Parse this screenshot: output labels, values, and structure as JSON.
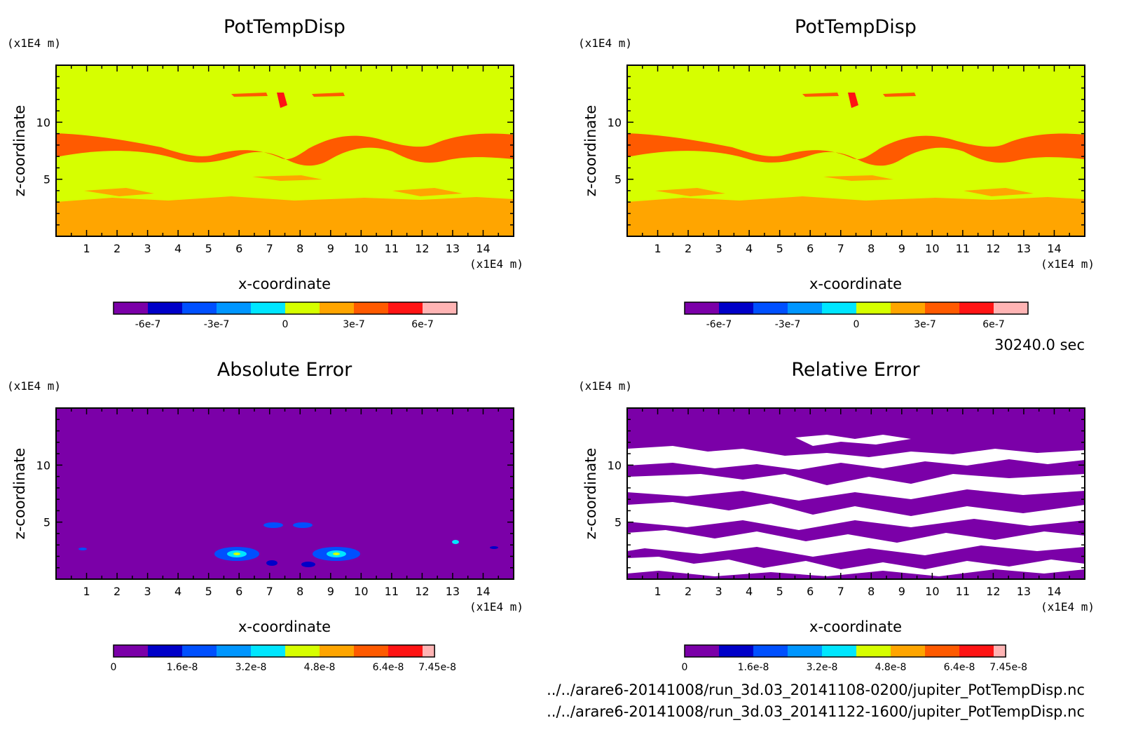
{
  "time_label": "30240.0 sec",
  "file_paths": [
    "../../arare6-20141008/run_3d.03_20141108-0200/jupiter_PotTempDisp.nc",
    "../../arare6-20141008/run_3d.03_20141122-1600/jupiter_PotTempDisp.nc"
  ],
  "colors": {
    "background_purple": "#7b00a8",
    "yellow_green": "#d6ff00",
    "orange": "#ffa500",
    "red_orange": "#ff5a00",
    "white": "#ffffff"
  },
  "chart_data": [
    {
      "type": "heatmap",
      "title": "PotTempDisp",
      "xlabel": "x-coordinate",
      "ylabel": "z-coordinate",
      "x_unit": "(x1E4 m)",
      "y_unit": "(x1E4 m)",
      "x_ticks": [
        "1",
        "2",
        "3",
        "4",
        "5",
        "6",
        "7",
        "8",
        "9",
        "10",
        "11",
        "12",
        "13",
        "14"
      ],
      "y_ticks": [
        "5",
        "10"
      ],
      "xlim": [
        0,
        15
      ],
      "ylim": [
        0,
        15
      ],
      "colorbar": {
        "colors": [
          "#7b00a8",
          "#0000c8",
          "#0050ff",
          "#0096ff",
          "#00e6ff",
          "#d6ff00",
          "#ffa500",
          "#ff5a00",
          "#ff1414",
          "#ffb4b4"
        ],
        "tick_labels": [
          "-6e-7",
          "-3e-7",
          "0",
          "3e-7",
          "6e-7"
        ]
      }
    },
    {
      "type": "heatmap",
      "title": "PotTempDisp",
      "xlabel": "x-coordinate",
      "ylabel": "z-coordinate",
      "x_unit": "(x1E4 m)",
      "y_unit": "(x1E4 m)",
      "x_ticks": [
        "1",
        "2",
        "3",
        "4",
        "5",
        "6",
        "7",
        "8",
        "9",
        "10",
        "11",
        "12",
        "13",
        "14"
      ],
      "y_ticks": [
        "5",
        "10"
      ],
      "xlim": [
        0,
        15
      ],
      "ylim": [
        0,
        15
      ],
      "colorbar": {
        "colors": [
          "#7b00a8",
          "#0000c8",
          "#0050ff",
          "#0096ff",
          "#00e6ff",
          "#d6ff00",
          "#ffa500",
          "#ff5a00",
          "#ff1414",
          "#ffb4b4"
        ],
        "tick_labels": [
          "-6e-7",
          "-3e-7",
          "0",
          "3e-7",
          "6e-7"
        ]
      }
    },
    {
      "type": "heatmap",
      "title": "Absolute Error",
      "xlabel": "x-coordinate",
      "ylabel": "z-coordinate",
      "x_unit": "(x1E4 m)",
      "y_unit": "(x1E4 m)",
      "x_ticks": [
        "1",
        "2",
        "3",
        "4",
        "5",
        "6",
        "7",
        "8",
        "9",
        "10",
        "11",
        "12",
        "13",
        "14"
      ],
      "y_ticks": [
        "5",
        "10"
      ],
      "xlim": [
        0,
        15
      ],
      "ylim": [
        0,
        15
      ],
      "colorbar": {
        "colors": [
          "#7b00a8",
          "#0000c8",
          "#0050ff",
          "#0096ff",
          "#00e6ff",
          "#d6ff00",
          "#ffa500",
          "#ff5a00",
          "#ff1414",
          "#ffb4b4"
        ],
        "tick_labels": [
          "0",
          "1.6e-8",
          "3.2e-8",
          "4.8e-8",
          "6.4e-8",
          "7.45e-8"
        ]
      }
    },
    {
      "type": "heatmap",
      "title": "Relative Error",
      "xlabel": "x-coordinate",
      "ylabel": "z-coordinate",
      "x_unit": "(x1E4 m)",
      "y_unit": "(x1E4 m)",
      "x_ticks": [
        "1",
        "2",
        "3",
        "4",
        "5",
        "6",
        "7",
        "8",
        "9",
        "10",
        "11",
        "12",
        "13",
        "14"
      ],
      "y_ticks": [
        "5",
        "10"
      ],
      "xlim": [
        0,
        15
      ],
      "ylim": [
        0,
        15
      ],
      "colorbar": {
        "colors": [
          "#7b00a8",
          "#0000c8",
          "#0050ff",
          "#0096ff",
          "#00e6ff",
          "#d6ff00",
          "#ffa500",
          "#ff5a00",
          "#ff1414",
          "#ffb4b4"
        ],
        "tick_labels": [
          "0",
          "1.6e-8",
          "3.2e-8",
          "4.8e-8",
          "6.4e-8",
          "7.45e-8"
        ]
      }
    }
  ]
}
